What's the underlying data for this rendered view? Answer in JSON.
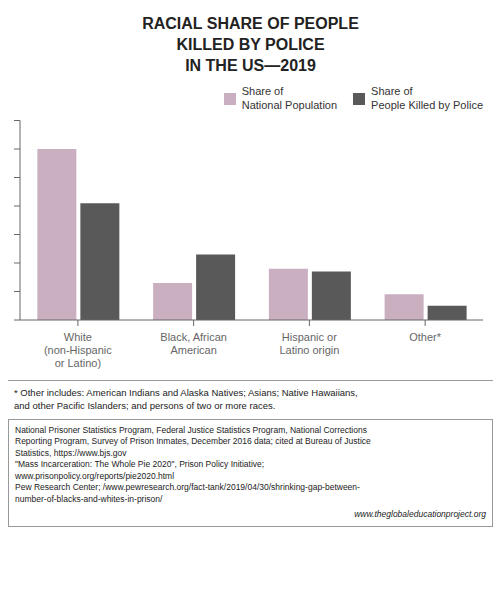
{
  "chart_data": {
    "type": "bar",
    "title": "RACIAL SHARE OF PEOPLE\nKILLED BY POLICE\nIN THE US—2019",
    "categories": [
      "White\n(non-Hispanic\nor Latino)",
      "Black, African\nAmerican",
      "Hispanic or\nLatino origin",
      "Other*"
    ],
    "series": [
      {
        "name": "Share of\nNational Population",
        "color": "#c9afc0",
        "values": [
          60,
          13,
          18,
          9
        ]
      },
      {
        "name": "Share of\nPeople Killed by Police",
        "color": "#595959",
        "values": [
          41,
          23,
          17,
          5
        ]
      }
    ],
    "ylim": [
      0,
      70
    ],
    "yticks": [
      0,
      10,
      20,
      30,
      40,
      50,
      60,
      70
    ],
    "tick_labels": "x",
    "legend": "upper right",
    "grid": false,
    "annotations": [
      "* Other includes: American Indians and Alaska Natives; Asians; Native Hawaiians,\nand other Pacific Islanders; and persons of two or more races.",
      "National Prisoner Statistics Program, Federal Justice Statistics Program, National Corrections\nReporting Program, Survey of Prison Inmates, December 2016 data; cited at Bureau of Justice\nStatistics, https://www.bjs.gov\n\"Mass Incarceration: The Whole Pie 2020\", Prison Policy Initiative;\nwww.prisonpolicy.org/reports/pie2020.html\nPew Research Center; /www.pewresearch.org/fact-tank/2019/04/30/shrinking-gap-between-\nnumber-of-blacks-and-whites-in-prison/",
      "www.theglobaleducationproject.org"
    ]
  }
}
